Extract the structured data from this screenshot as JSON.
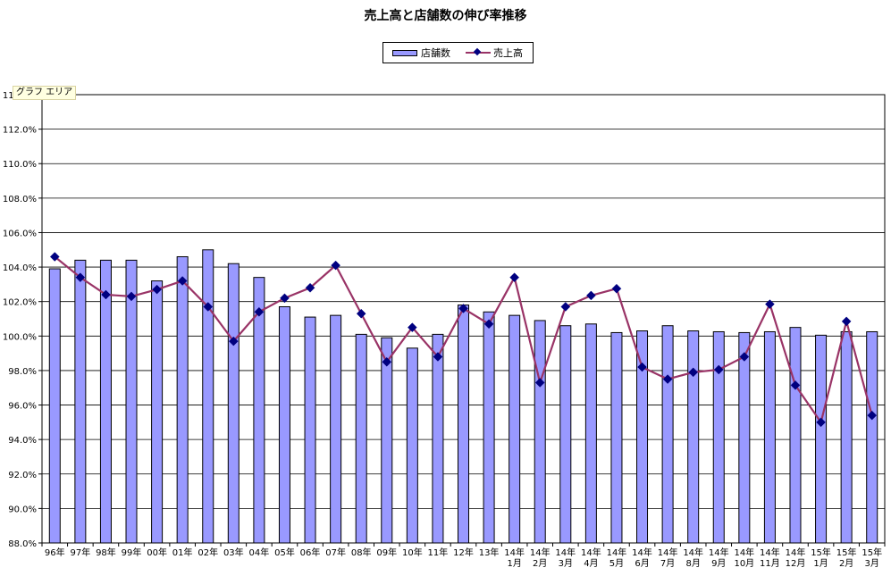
{
  "chart_data": {
    "type": "bar",
    "title": "売上高と店舗数の伸び率推移",
    "ylim": [
      88,
      114
    ],
    "y_ticks": [
      "88.0%",
      "90.0%",
      "92.0%",
      "94.0%",
      "96.0%",
      "98.0%",
      "100.0%",
      "102.0%",
      "104.0%",
      "106.0%",
      "108.0%",
      "110.0%",
      "112.0%",
      "114.0%"
    ],
    "grid": true,
    "legend_position": "top-center",
    "categories": [
      [
        "96年"
      ],
      [
        "97年"
      ],
      [
        "98年"
      ],
      [
        "99年"
      ],
      [
        "00年"
      ],
      [
        "01年"
      ],
      [
        "02年"
      ],
      [
        "03年"
      ],
      [
        "04年"
      ],
      [
        "05年"
      ],
      [
        "06年"
      ],
      [
        "07年"
      ],
      [
        "08年"
      ],
      [
        "09年"
      ],
      [
        "10年"
      ],
      [
        "11年"
      ],
      [
        "12年"
      ],
      [
        "13年"
      ],
      [
        "14年",
        "1月"
      ],
      [
        "14年",
        "2月"
      ],
      [
        "14年",
        "3月"
      ],
      [
        "14年",
        "4月"
      ],
      [
        "14年",
        "5月"
      ],
      [
        "14年",
        "6月"
      ],
      [
        "14年",
        "7月"
      ],
      [
        "14年",
        "8月"
      ],
      [
        "14年",
        "9月"
      ],
      [
        "14年",
        "10月"
      ],
      [
        "14年",
        "11月"
      ],
      [
        "14年",
        "12月"
      ],
      [
        "15年",
        "1月"
      ],
      [
        "15年",
        "2月"
      ],
      [
        "15年",
        "3月"
      ]
    ],
    "series": [
      {
        "name": "店舗数",
        "type": "bar",
        "color": "#9999ff",
        "values": [
          103.9,
          104.4,
          104.4,
          104.4,
          103.2,
          104.6,
          105.0,
          104.2,
          103.4,
          101.7,
          101.1,
          101.2,
          100.1,
          99.9,
          99.3,
          100.1,
          101.8,
          101.4,
          101.2,
          100.9,
          100.6,
          100.7,
          100.2,
          100.3,
          100.6,
          100.3,
          100.25,
          100.2,
          100.25,
          100.5,
          100.05,
          100.25,
          100.25
        ]
      },
      {
        "name": "売上高",
        "type": "line",
        "color": "#993366",
        "marker_color": "#000080",
        "values": [
          104.6,
          103.4,
          102.4,
          102.3,
          102.7,
          103.2,
          101.7,
          99.7,
          101.4,
          102.2,
          102.8,
          104.1,
          101.3,
          98.5,
          100.5,
          98.8,
          101.6,
          100.7,
          103.4,
          97.3,
          101.7,
          102.35,
          102.75,
          98.2,
          97.5,
          97.9,
          98.05,
          98.8,
          101.85,
          97.15,
          95.0,
          100.85,
          95.4
        ]
      }
    ]
  },
  "tooltip": "グラフ エリア"
}
